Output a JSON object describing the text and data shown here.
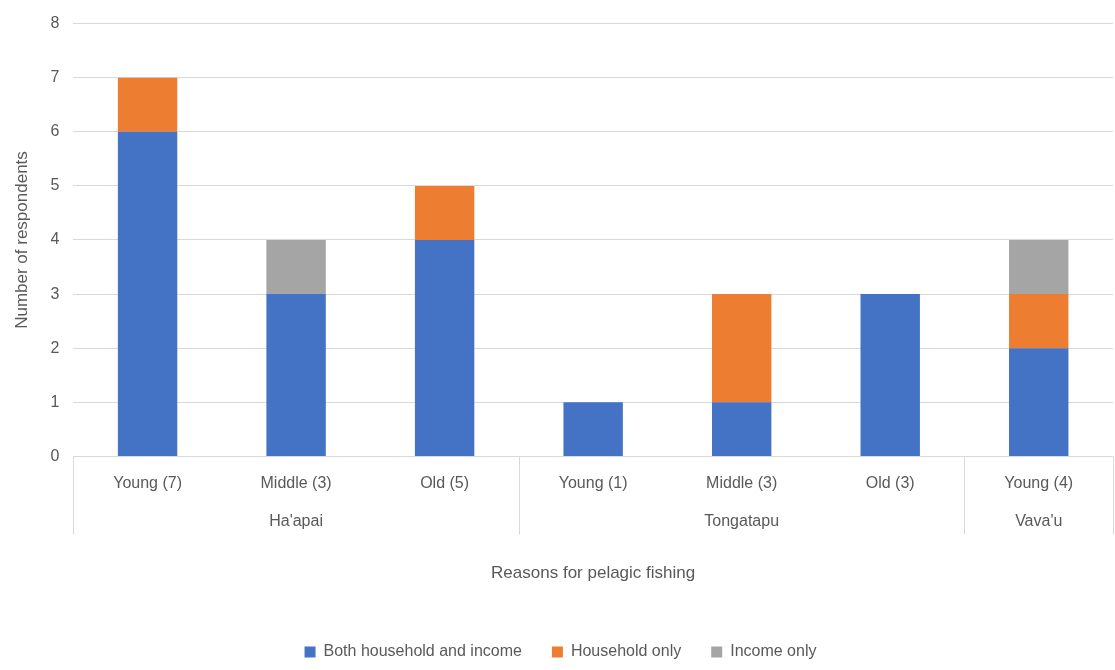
{
  "chart_data": {
    "type": "bar",
    "stacked": true,
    "xlabel": "Reasons for pelagic fishing",
    "ylabel": "Number of respondents",
    "categories": [
      "Young (7)",
      "Middle (3)",
      "Old (5)",
      "Young (1)",
      "Middle (3)",
      "Old (3)",
      "Young (4)"
    ],
    "series": [
      {
        "name": "Both household and income",
        "color": "#4472c4",
        "values": [
          6,
          3,
          4,
          1,
          1,
          3,
          2
        ]
      },
      {
        "name": "Household only",
        "color": "#ed7d31",
        "values": [
          1,
          0,
          1,
          0,
          2,
          0,
          1
        ]
      },
      {
        "name": "Income only",
        "color": "#a5a5a5",
        "values": [
          0,
          1,
          0,
          0,
          0,
          0,
          1
        ]
      }
    ],
    "annotations": [
      "Ha'apai",
      "Tongatapu",
      "Vava'u"
    ],
    "ylim": [
      0,
      8
    ],
    "yticks": [
      0,
      1,
      2,
      3,
      4,
      5,
      6,
      7,
      8
    ],
    "grid": "y",
    "legend": "bottom"
  }
}
